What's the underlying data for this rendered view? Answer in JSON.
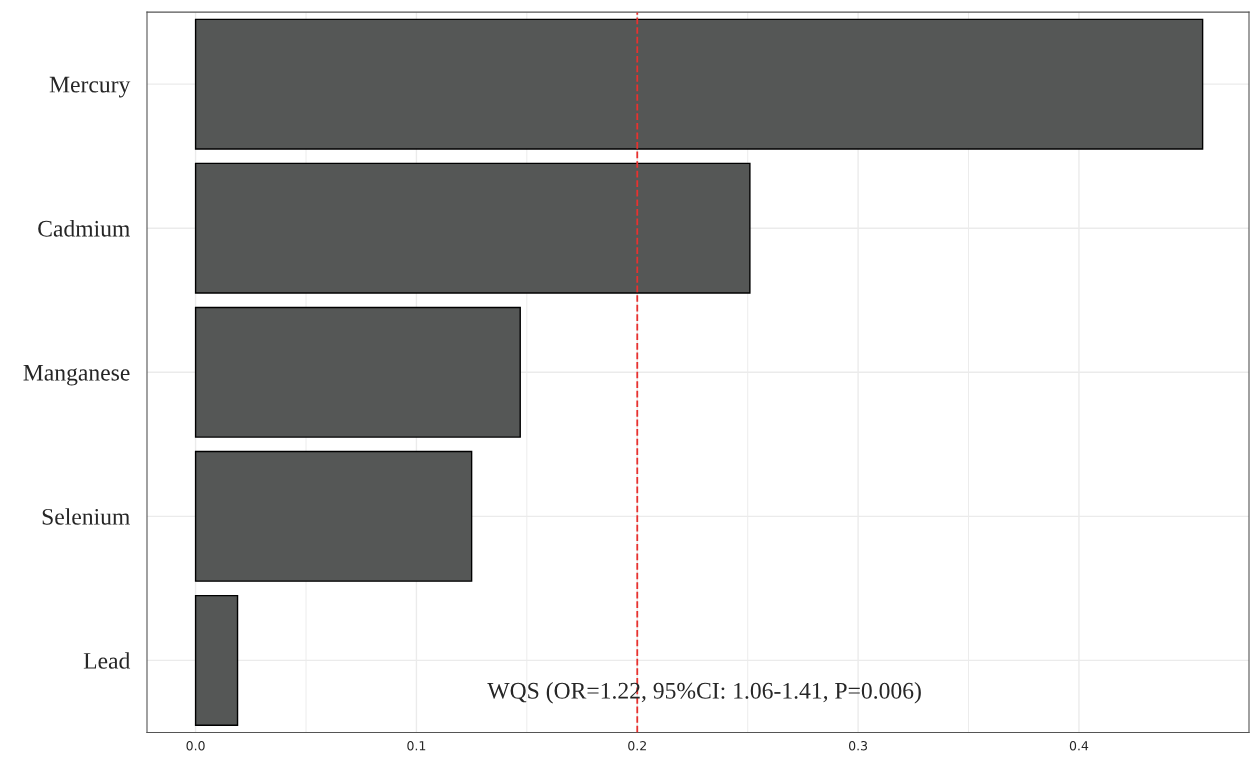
{
  "chart_data": {
    "type": "bar",
    "orientation": "horizontal",
    "categories": [
      "Mercury",
      "Cadmium",
      "Manganese",
      "Selenium",
      "Lead"
    ],
    "values": [
      0.456,
      0.251,
      0.147,
      0.125,
      0.019
    ],
    "color": "#555756",
    "xlim": [
      -0.022,
      0.477
    ],
    "xticks": [
      {
        "value": 0,
        "label": "0.0"
      },
      0.1,
      0.2,
      0.3,
      0.4
    ],
    "grid": true,
    "ref_lines": [
      {
        "axis": "x",
        "value": 0.2,
        "color": "#e8312f",
        "line_style": "dashed"
      }
    ],
    "annotations": [
      "WQS (OR=1.22, 95%CI: 1.06-1.41, P=0.006)"
    ]
  }
}
